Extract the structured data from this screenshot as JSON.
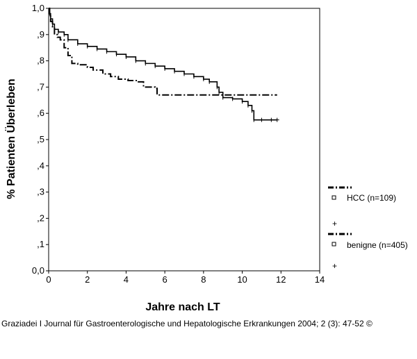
{
  "chart_data": {
    "type": "line",
    "xlabel": "Jahre nach LT",
    "ylabel": "% Patienten Überleben",
    "xlim": [
      0,
      14
    ],
    "ylim": [
      0,
      1
    ],
    "x_ticks": [
      "0",
      "2",
      "4",
      "6",
      "8",
      "10",
      "12",
      "14"
    ],
    "y_ticks": [
      "0,0",
      ",1",
      ",2",
      ",3",
      ",4",
      ",5",
      ",6",
      ",7",
      ",8",
      ",9",
      "1,0"
    ],
    "grid": false,
    "legend_position": "right",
    "series": [
      {
        "name": "HCC (n=109)",
        "censor_label": "+",
        "line_style": "dash-dot",
        "x": [
          0,
          0.05,
          0.1,
          0.2,
          0.3,
          0.45,
          0.6,
          0.8,
          1.0,
          1.2,
          1.5,
          2.0,
          2.3,
          2.8,
          3.2,
          3.6,
          4.1,
          4.6,
          4.9,
          5.5,
          5.6,
          6.5,
          7.5,
          8.5,
          9.5,
          10.5,
          11.8
        ],
        "y": [
          1.0,
          0.97,
          0.95,
          0.93,
          0.9,
          0.89,
          0.88,
          0.85,
          0.82,
          0.79,
          0.785,
          0.775,
          0.765,
          0.75,
          0.74,
          0.73,
          0.725,
          0.72,
          0.7,
          0.695,
          0.67,
          0.67,
          0.67,
          0.67,
          0.67,
          0.67,
          0.67
        ]
      },
      {
        "name": "benigne (n=405)",
        "censor_label": "+",
        "line_style": "solid-censored",
        "x": [
          0,
          0.05,
          0.1,
          0.2,
          0.3,
          0.5,
          0.8,
          1.0,
          1.5,
          2.0,
          2.5,
          3.0,
          3.5,
          4.0,
          4.5,
          5.0,
          5.5,
          6.0,
          6.5,
          7.0,
          7.5,
          8.0,
          8.3,
          8.7,
          8.8,
          9.0,
          9.5,
          10.0,
          10.3,
          10.5,
          10.6,
          11.0,
          11.5,
          11.8
        ],
        "y": [
          1.0,
          0.98,
          0.96,
          0.94,
          0.92,
          0.91,
          0.9,
          0.88,
          0.865,
          0.855,
          0.845,
          0.835,
          0.825,
          0.815,
          0.8,
          0.79,
          0.78,
          0.77,
          0.76,
          0.75,
          0.74,
          0.73,
          0.72,
          0.7,
          0.68,
          0.66,
          0.655,
          0.645,
          0.63,
          0.61,
          0.575,
          0.575,
          0.575,
          0.575
        ]
      }
    ]
  },
  "caption": "Graziadei I Journal für Gastroenterologische und Hepatologische Erkrankungen 2004; 2 (3): 47-52 ©"
}
